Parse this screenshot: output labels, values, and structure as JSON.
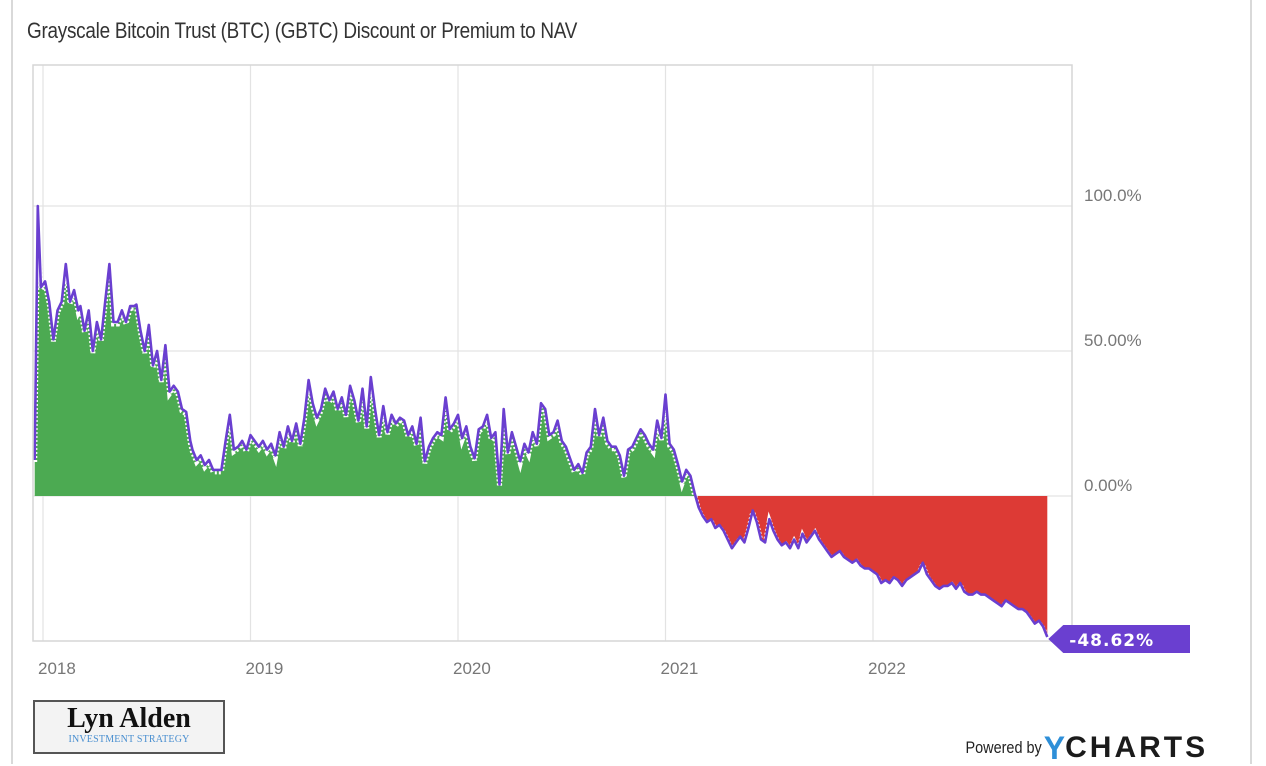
{
  "chart_data": {
    "type": "area",
    "title": "Grayscale Bitcoin Trust (BTC) (GBTC) Discount or Premium to NAV",
    "xlabel": "",
    "ylabel": "",
    "x_ticks": [
      "2018",
      "2019",
      "2020",
      "2021",
      "2022"
    ],
    "x_tick_values": [
      2018,
      2019,
      2020,
      2021,
      2022
    ],
    "xlim": [
      2017.95,
      2022.95
    ],
    "y_ticks": [
      "100.0%",
      "50.00%",
      "0.00%"
    ],
    "y_tick_values": [
      100,
      50,
      0
    ],
    "ylim": [
      -50,
      150
    ],
    "y_axis_side": "right",
    "grid": true,
    "legend": "none",
    "colors": {
      "line": "#6a3fd0",
      "positive_fill": "#4caa52",
      "negative_fill": "#dd3a35",
      "end_label_bg": "#6a3fd0",
      "end_label_text": "#ffffff"
    },
    "end_label": "-48.62%",
    "series": [
      {
        "name": "GBTC Discount or Premium to NAV",
        "unit": "%",
        "points": [
          [
            2017.96,
            12.4
          ],
          [
            2017.975,
            100
          ],
          [
            2017.99,
            72
          ],
          [
            2018.01,
            74
          ],
          [
            2018.03,
            67
          ],
          [
            2018.05,
            54
          ],
          [
            2018.07,
            64
          ],
          [
            2018.09,
            67
          ],
          [
            2018.11,
            80
          ],
          [
            2018.13,
            67
          ],
          [
            2018.15,
            71
          ],
          [
            2018.17,
            64
          ],
          [
            2018.18,
            65.5
          ],
          [
            2018.2,
            57
          ],
          [
            2018.22,
            64
          ],
          [
            2018.24,
            50
          ],
          [
            2018.26,
            60
          ],
          [
            2018.28,
            54
          ],
          [
            2018.3,
            67
          ],
          [
            2018.32,
            80
          ],
          [
            2018.34,
            60
          ],
          [
            2018.36,
            60
          ],
          [
            2018.38,
            64
          ],
          [
            2018.4,
            60
          ],
          [
            2018.42,
            65.5
          ],
          [
            2018.44,
            65.5
          ],
          [
            2018.45,
            66
          ],
          [
            2018.47,
            57
          ],
          [
            2018.49,
            50
          ],
          [
            2018.51,
            59
          ],
          [
            2018.53,
            45
          ],
          [
            2018.55,
            50
          ],
          [
            2018.57,
            40
          ],
          [
            2018.59,
            52
          ],
          [
            2018.61,
            36
          ],
          [
            2018.63,
            38
          ],
          [
            2018.65,
            36
          ],
          [
            2018.67,
            30
          ],
          [
            2018.69,
            29
          ],
          [
            2018.71,
            19
          ],
          [
            2018.72,
            16
          ],
          [
            2018.74,
            12.4
          ],
          [
            2018.76,
            14
          ],
          [
            2018.78,
            10.7
          ],
          [
            2018.8,
            12.4
          ],
          [
            2018.82,
            9
          ],
          [
            2018.84,
            9
          ],
          [
            2018.86,
            9
          ],
          [
            2018.88,
            19
          ],
          [
            2018.9,
            28
          ],
          [
            2018.92,
            16
          ],
          [
            2018.94,
            17
          ],
          [
            2018.96,
            19
          ],
          [
            2018.98,
            16
          ],
          [
            2019.0,
            21
          ],
          [
            2019.02,
            19
          ],
          [
            2019.04,
            17
          ],
          [
            2019.06,
            19
          ],
          [
            2019.08,
            16
          ],
          [
            2019.1,
            18
          ],
          [
            2019.12,
            14
          ],
          [
            2019.14,
            22
          ],
          [
            2019.16,
            17
          ],
          [
            2019.18,
            24
          ],
          [
            2019.2,
            19
          ],
          [
            2019.22,
            25
          ],
          [
            2019.24,
            18
          ],
          [
            2019.26,
            27
          ],
          [
            2019.28,
            40
          ],
          [
            2019.3,
            32
          ],
          [
            2019.32,
            27
          ],
          [
            2019.34,
            30
          ],
          [
            2019.36,
            37
          ],
          [
            2019.38,
            33
          ],
          [
            2019.4,
            36
          ],
          [
            2019.42,
            30
          ],
          [
            2019.44,
            34
          ],
          [
            2019.46,
            28
          ],
          [
            2019.48,
            38
          ],
          [
            2019.5,
            33
          ],
          [
            2019.52,
            26
          ],
          [
            2019.54,
            37
          ],
          [
            2019.56,
            24
          ],
          [
            2019.58,
            41
          ],
          [
            2019.6,
            30
          ],
          [
            2019.62,
            21
          ],
          [
            2019.64,
            31
          ],
          [
            2019.66,
            22
          ],
          [
            2019.68,
            28
          ],
          [
            2019.7,
            25
          ],
          [
            2019.72,
            27
          ],
          [
            2019.74,
            26
          ],
          [
            2019.76,
            21
          ],
          [
            2019.78,
            24
          ],
          [
            2019.8,
            18
          ],
          [
            2019.82,
            27
          ],
          [
            2019.84,
            12
          ],
          [
            2019.86,
            17
          ],
          [
            2019.88,
            20
          ],
          [
            2019.9,
            22
          ],
          [
            2019.92,
            21
          ],
          [
            2019.94,
            34
          ],
          [
            2019.96,
            23
          ],
          [
            2019.98,
            25
          ],
          [
            2020.0,
            28
          ],
          [
            2020.02,
            20
          ],
          [
            2020.04,
            24
          ],
          [
            2020.06,
            17
          ],
          [
            2020.08,
            13
          ],
          [
            2020.1,
            23
          ],
          [
            2020.12,
            24
          ],
          [
            2020.14,
            28
          ],
          [
            2020.16,
            20
          ],
          [
            2020.18,
            22
          ],
          [
            2020.2,
            4
          ],
          [
            2020.22,
            30
          ],
          [
            2020.24,
            15
          ],
          [
            2020.26,
            22
          ],
          [
            2020.28,
            17
          ],
          [
            2020.3,
            12
          ],
          [
            2020.32,
            18
          ],
          [
            2020.34,
            15
          ],
          [
            2020.36,
            22
          ],
          [
            2020.38,
            18
          ],
          [
            2020.4,
            32
          ],
          [
            2020.42,
            30
          ],
          [
            2020.44,
            21
          ],
          [
            2020.46,
            22
          ],
          [
            2020.48,
            26
          ],
          [
            2020.5,
            19
          ],
          [
            2020.52,
            17
          ],
          [
            2020.54,
            13
          ],
          [
            2020.56,
            9
          ],
          [
            2020.58,
            11
          ],
          [
            2020.6,
            8
          ],
          [
            2020.62,
            15
          ],
          [
            2020.64,
            17
          ],
          [
            2020.66,
            30
          ],
          [
            2020.68,
            21
          ],
          [
            2020.7,
            27
          ],
          [
            2020.72,
            19
          ],
          [
            2020.74,
            17
          ],
          [
            2020.76,
            17
          ],
          [
            2020.78,
            14
          ],
          [
            2020.8,
            7
          ],
          [
            2020.82,
            16
          ],
          [
            2020.84,
            17
          ],
          [
            2020.86,
            20
          ],
          [
            2020.88,
            23
          ],
          [
            2020.9,
            21
          ],
          [
            2020.92,
            18
          ],
          [
            2020.94,
            16
          ],
          [
            2020.96,
            26
          ],
          [
            2020.98,
            20
          ],
          [
            2021.0,
            35
          ],
          [
            2021.02,
            18
          ],
          [
            2021.04,
            16
          ],
          [
            2021.06,
            11
          ],
          [
            2021.08,
            5
          ],
          [
            2021.1,
            9
          ],
          [
            2021.12,
            7
          ],
          [
            2021.14,
            1
          ],
          [
            2021.16,
            -4
          ],
          [
            2021.18,
            -7
          ],
          [
            2021.2,
            -9
          ],
          [
            2021.22,
            -8
          ],
          [
            2021.24,
            -11
          ],
          [
            2021.26,
            -10
          ],
          [
            2021.28,
            -12
          ],
          [
            2021.3,
            -15
          ],
          [
            2021.32,
            -18
          ],
          [
            2021.34,
            -16
          ],
          [
            2021.36,
            -14
          ],
          [
            2021.38,
            -16
          ],
          [
            2021.4,
            -11
          ],
          [
            2021.42,
            -5
          ],
          [
            2021.44,
            -9
          ],
          [
            2021.46,
            -15
          ],
          [
            2021.48,
            -16
          ],
          [
            2021.5,
            -8
          ],
          [
            2021.52,
            -12
          ],
          [
            2021.54,
            -15
          ],
          [
            2021.56,
            -17
          ],
          [
            2021.58,
            -16
          ],
          [
            2021.6,
            -18
          ],
          [
            2021.62,
            -15
          ],
          [
            2021.64,
            -18
          ],
          [
            2021.66,
            -13
          ],
          [
            2021.68,
            -16
          ],
          [
            2021.7,
            -14
          ],
          [
            2021.72,
            -12
          ],
          [
            2021.74,
            -15
          ],
          [
            2021.76,
            -17
          ],
          [
            2021.78,
            -19
          ],
          [
            2021.8,
            -21
          ],
          [
            2021.82,
            -20
          ],
          [
            2021.84,
            -19
          ],
          [
            2021.86,
            -21
          ],
          [
            2021.88,
            -22
          ],
          [
            2021.9,
            -23
          ],
          [
            2021.92,
            -22
          ],
          [
            2021.94,
            -24
          ],
          [
            2021.96,
            -25
          ],
          [
            2021.98,
            -25
          ],
          [
            2022.0,
            -26
          ],
          [
            2022.02,
            -27
          ],
          [
            2022.04,
            -30
          ],
          [
            2022.06,
            -29
          ],
          [
            2022.08,
            -30
          ],
          [
            2022.1,
            -28
          ],
          [
            2022.12,
            -29
          ],
          [
            2022.14,
            -31
          ],
          [
            2022.16,
            -29
          ],
          [
            2022.18,
            -28
          ],
          [
            2022.2,
            -27
          ],
          [
            2022.22,
            -26
          ],
          [
            2022.24,
            -23
          ],
          [
            2022.26,
            -27
          ],
          [
            2022.28,
            -29
          ],
          [
            2022.3,
            -31
          ],
          [
            2022.32,
            -32
          ],
          [
            2022.34,
            -31
          ],
          [
            2022.36,
            -31
          ],
          [
            2022.38,
            -30
          ],
          [
            2022.4,
            -32
          ],
          [
            2022.42,
            -30
          ],
          [
            2022.44,
            -33
          ],
          [
            2022.46,
            -34
          ],
          [
            2022.48,
            -34
          ],
          [
            2022.5,
            -33
          ],
          [
            2022.52,
            -34
          ],
          [
            2022.54,
            -34
          ],
          [
            2022.56,
            -35
          ],
          [
            2022.58,
            -36
          ],
          [
            2022.6,
            -37
          ],
          [
            2022.62,
            -38
          ],
          [
            2022.64,
            -36
          ],
          [
            2022.66,
            -37
          ],
          [
            2022.68,
            -38
          ],
          [
            2022.7,
            -39
          ],
          [
            2022.72,
            -39
          ],
          [
            2022.74,
            -40
          ],
          [
            2022.76,
            -42
          ],
          [
            2022.78,
            -44
          ],
          [
            2022.8,
            -43
          ],
          [
            2022.82,
            -45
          ],
          [
            2022.84,
            -48.62
          ]
        ]
      }
    ]
  },
  "branding": {
    "logo_name": "Lyn Alden",
    "logo_subtitle": "INVESTMENT STRATEGY",
    "powered_by": "Powered by",
    "ycharts_y": "Y",
    "ycharts_rest": "CHARTS"
  }
}
